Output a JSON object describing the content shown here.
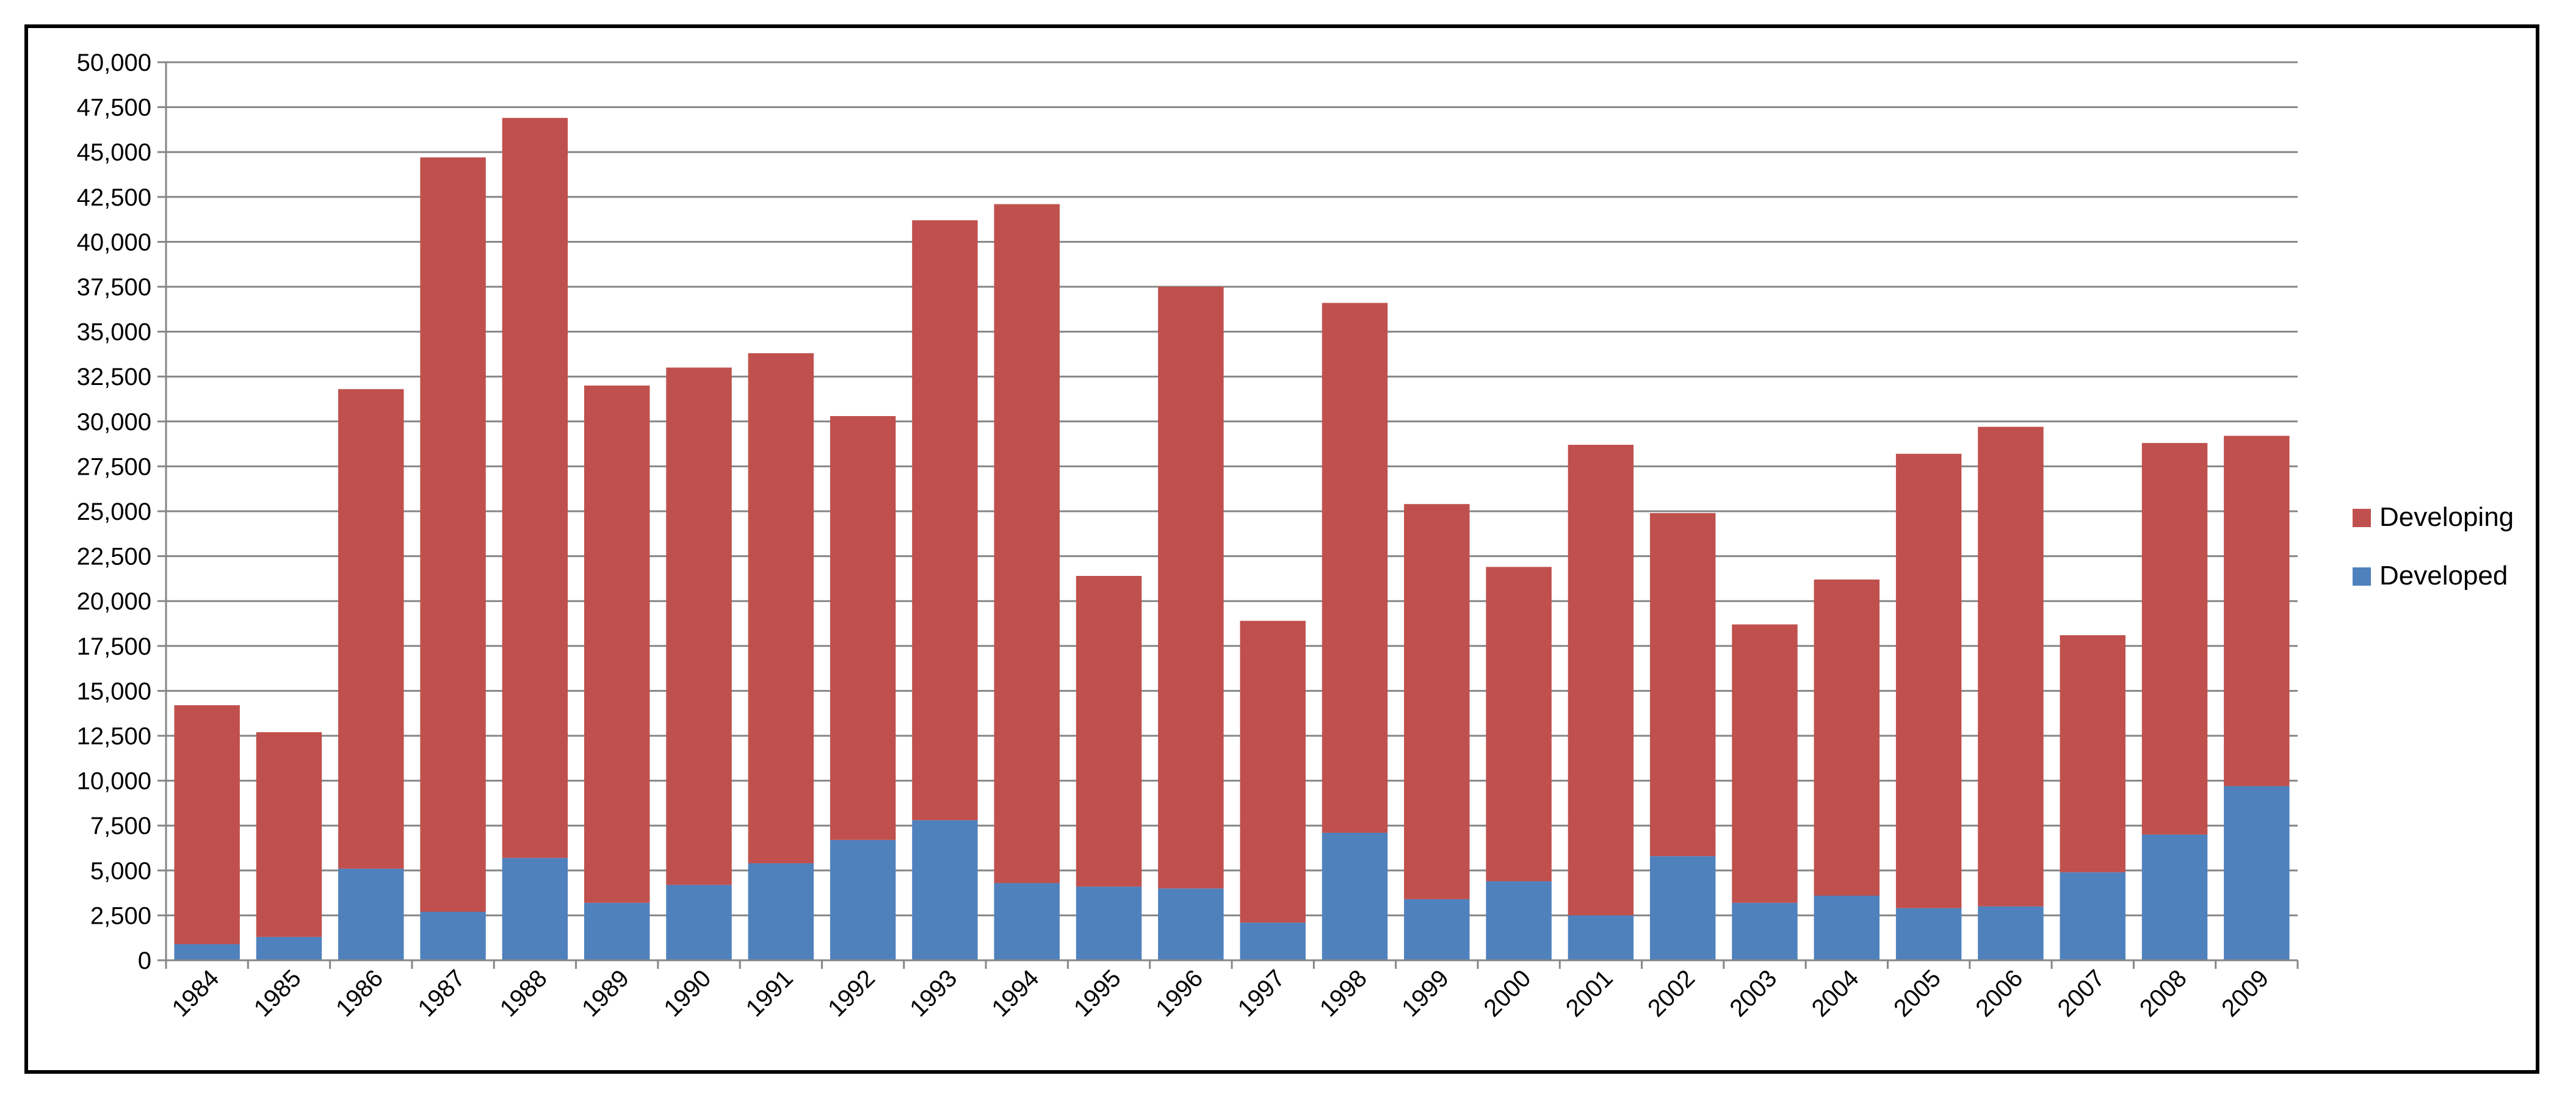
{
  "chart_data": {
    "type": "bar",
    "stacked": true,
    "categories": [
      "1984",
      "1985",
      "1986",
      "1987",
      "1988",
      "1989",
      "1990",
      "1991",
      "1992",
      "1993",
      "1994",
      "1995",
      "1996",
      "1997",
      "1998",
      "1999",
      "2000",
      "2001",
      "2002",
      "2003",
      "2004",
      "2005",
      "2006",
      "2007",
      "2008",
      "2009"
    ],
    "series": [
      {
        "name": "Developed",
        "color": "#4F81BD",
        "values": [
          900,
          1300,
          5100,
          2700,
          5700,
          3200,
          4200,
          5400,
          6700,
          7800,
          4300,
          4100,
          4000,
          2100,
          7100,
          3400,
          4400,
          2500,
          5800,
          3200,
          3600,
          2900,
          3000,
          4900,
          7000,
          9700
        ]
      },
      {
        "name": "Developing",
        "color": "#C0504D",
        "values": [
          13300,
          11400,
          26700,
          42000,
          41200,
          28800,
          28800,
          28400,
          23600,
          33400,
          37800,
          17300,
          33500,
          16800,
          29500,
          22000,
          17500,
          26200,
          19100,
          15500,
          17600,
          25300,
          26700,
          13200,
          21800,
          19500
        ]
      }
    ],
    "ylim": [
      0,
      50000
    ],
    "ytick_step": 2500,
    "yticks": [
      "0",
      "2,500",
      "5,000",
      "7,500",
      "10,000",
      "12,500",
      "15,000",
      "17,500",
      "20,000",
      "22,500",
      "25,000",
      "27,500",
      "30,000",
      "32,500",
      "35,000",
      "37,500",
      "40,000",
      "42,500",
      "45,000",
      "47,500",
      "50,000"
    ],
    "xlabel": "",
    "ylabel": "",
    "title": "",
    "grid": true,
    "legend": {
      "position": "right",
      "entries": [
        "Developing",
        "Developed"
      ]
    },
    "axis_color": "#868686",
    "grid_color": "#868686"
  }
}
